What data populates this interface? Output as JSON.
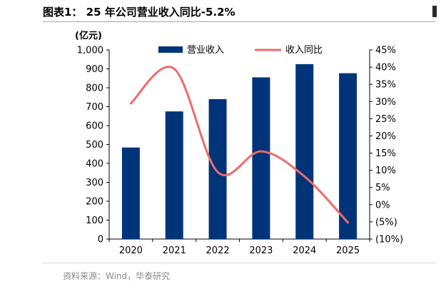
{
  "header": {
    "title": "图表1： 25 年公司营业收入同比-5.2%",
    "unit": "(亿元)"
  },
  "footer": {
    "source": "资料来源：Wind，华泰研究"
  },
  "chart_data": {
    "type": "bar",
    "categories": [
      "2020",
      "2021",
      "2022",
      "2023",
      "2024",
      "2025"
    ],
    "series": [
      {
        "name": "营业收入",
        "type": "bar",
        "axis": "left",
        "color": "#003478",
        "values": [
          484,
          675,
          740,
          855,
          925,
          877
        ]
      },
      {
        "name": "收入同比",
        "type": "line",
        "axis": "right",
        "color": "#f06a6a",
        "values": [
          29.5,
          39.5,
          9.5,
          15.5,
          8.2,
          -5.2
        ]
      }
    ],
    "y_left": {
      "min": 0,
      "max": 1000,
      "step": 100,
      "ticks": [
        "0",
        "100",
        "200",
        "300",
        "400",
        "500",
        "600",
        "700",
        "800",
        "900",
        "1,000"
      ]
    },
    "y_right": {
      "min": -10,
      "max": 45,
      "step": 5,
      "ticks": [
        "(10%)",
        "(5%)",
        "0%",
        "5%",
        "10%",
        "15%",
        "20%",
        "25%",
        "30%",
        "35%",
        "40%",
        "45%"
      ]
    },
    "legend": "top-center",
    "grid": false
  }
}
